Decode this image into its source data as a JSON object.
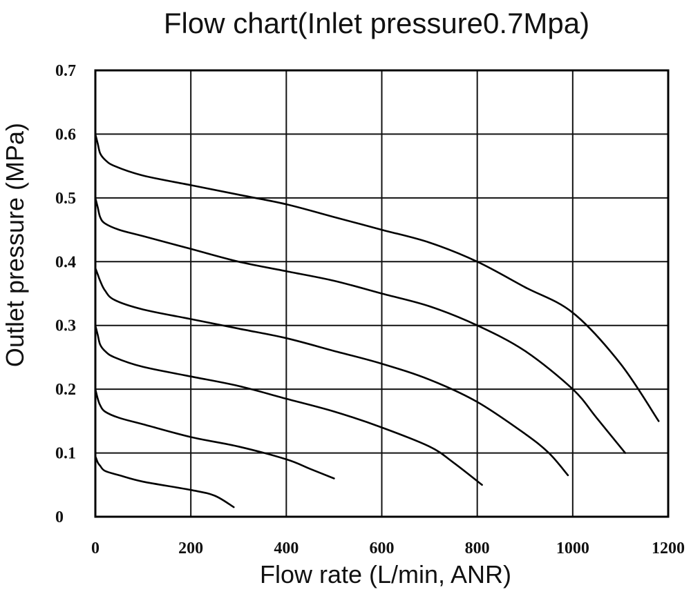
{
  "chart_data": {
    "type": "line",
    "title": "Flow chart(Inlet pressure0.7Mpa)",
    "xlabel": "Flow rate  (L/min,  ANR)",
    "ylabel": "Outlet pressure  (MPa)",
    "xlim": [
      0,
      1200
    ],
    "ylim": [
      0,
      0.7
    ],
    "x_ticks": [
      0,
      200,
      400,
      600,
      800,
      1000,
      1200
    ],
    "x_tick_labels": [
      "0",
      "200",
      "400",
      "600",
      "800",
      "1000",
      "1200"
    ],
    "y_ticks": [
      0,
      0.1,
      0.2,
      0.3,
      0.4,
      0.5,
      0.6,
      0.7
    ],
    "y_tick_labels": [
      "0",
      "0.1",
      "0.2",
      "0.3",
      "0.4",
      "0.5",
      "0.6",
      "0.7"
    ],
    "grid": true,
    "legend": "none",
    "line_color": "#000000",
    "series": [
      {
        "x": [
          0,
          5,
          10,
          20,
          40,
          100,
          200,
          300,
          400,
          500,
          600,
          700,
          800,
          900,
          1000,
          1100,
          1180
        ],
        "y": [
          0.6,
          0.585,
          0.57,
          0.56,
          0.55,
          0.535,
          0.52,
          0.505,
          0.49,
          0.47,
          0.45,
          0.43,
          0.4,
          0.36,
          0.32,
          0.24,
          0.15
        ]
      },
      {
        "x": [
          0,
          5,
          10,
          20,
          50,
          100,
          200,
          300,
          400,
          500,
          600,
          700,
          800,
          900,
          1000,
          1050,
          1110
        ],
        "y": [
          0.5,
          0.485,
          0.47,
          0.46,
          0.45,
          0.44,
          0.42,
          0.4,
          0.385,
          0.37,
          0.35,
          0.33,
          0.3,
          0.26,
          0.2,
          0.155,
          0.1
        ]
      },
      {
        "x": [
          0,
          5,
          10,
          20,
          40,
          100,
          200,
          300,
          400,
          500,
          600,
          700,
          800,
          900,
          950,
          990
        ],
        "y": [
          0.39,
          0.38,
          0.37,
          0.355,
          0.34,
          0.325,
          0.31,
          0.295,
          0.28,
          0.26,
          0.24,
          0.215,
          0.18,
          0.13,
          0.1,
          0.065
        ]
      },
      {
        "x": [
          0,
          5,
          10,
          20,
          40,
          100,
          200,
          300,
          400,
          500,
          600,
          700,
          750,
          810
        ],
        "y": [
          0.3,
          0.285,
          0.27,
          0.26,
          0.25,
          0.235,
          0.22,
          0.205,
          0.185,
          0.165,
          0.14,
          0.11,
          0.085,
          0.05
        ]
      },
      {
        "x": [
          0,
          5,
          10,
          20,
          50,
          100,
          200,
          300,
          400,
          450,
          500
        ],
        "y": [
          0.2,
          0.185,
          0.175,
          0.165,
          0.155,
          0.145,
          0.125,
          0.11,
          0.09,
          0.075,
          0.06
        ]
      },
      {
        "x": [
          0,
          5,
          10,
          20,
          50,
          100,
          200,
          250,
          290
        ],
        "y": [
          0.095,
          0.085,
          0.08,
          0.072,
          0.065,
          0.055,
          0.042,
          0.033,
          0.015
        ]
      }
    ]
  }
}
